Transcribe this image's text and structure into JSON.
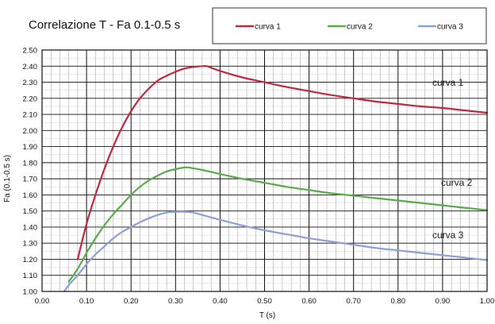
{
  "chart_data": {
    "type": "line",
    "title": "Correlazione T - Fa 0.1-0.5 s",
    "xlabel": "T (s)",
    "ylabel": "Fa (0.1-0.5 s)",
    "xlim": [
      0.0,
      1.0
    ],
    "ylim": [
      1.0,
      2.5
    ],
    "x_ticks": [
      "0.00",
      "0.10",
      "0.20",
      "0.30",
      "0.40",
      "0.50",
      "0.60",
      "0.70",
      "0.80",
      "0.90",
      "1.00"
    ],
    "y_ticks": [
      "1.00",
      "1.10",
      "1.20",
      "1.30",
      "1.40",
      "1.50",
      "1.60",
      "1.70",
      "1.80",
      "1.90",
      "2.00",
      "2.10",
      "2.20",
      "2.30",
      "2.40",
      "2.50"
    ],
    "grid": true,
    "legend_position": "top",
    "series": [
      {
        "name": "curva 1",
        "color": "#c0283d",
        "x": [
          0.08,
          0.1,
          0.12,
          0.14,
          0.16,
          0.18,
          0.2,
          0.22,
          0.24,
          0.26,
          0.28,
          0.3,
          0.32,
          0.34,
          0.36,
          0.37,
          0.38,
          0.4,
          0.45,
          0.5,
          0.55,
          0.6,
          0.65,
          0.7,
          0.75,
          0.8,
          0.85,
          0.9,
          0.95,
          1.0
        ],
        "y": [
          1.2,
          1.42,
          1.6,
          1.76,
          1.9,
          2.02,
          2.12,
          2.2,
          2.26,
          2.31,
          2.34,
          2.365,
          2.385,
          2.395,
          2.4,
          2.4,
          2.39,
          2.37,
          2.33,
          2.3,
          2.27,
          2.245,
          2.22,
          2.2,
          2.18,
          2.165,
          2.15,
          2.14,
          2.125,
          2.11
        ]
      },
      {
        "name": "curva 2",
        "color": "#5aab4a",
        "x": [
          0.06,
          0.08,
          0.1,
          0.12,
          0.14,
          0.16,
          0.18,
          0.2,
          0.22,
          0.24,
          0.26,
          0.28,
          0.3,
          0.32,
          0.33,
          0.34,
          0.36,
          0.4,
          0.45,
          0.5,
          0.55,
          0.6,
          0.65,
          0.7,
          0.75,
          0.8,
          0.85,
          0.9,
          0.95,
          1.0
        ],
        "y": [
          1.06,
          1.14,
          1.24,
          1.33,
          1.41,
          1.48,
          1.54,
          1.6,
          1.65,
          1.69,
          1.72,
          1.745,
          1.76,
          1.77,
          1.77,
          1.765,
          1.755,
          1.73,
          1.7,
          1.675,
          1.65,
          1.63,
          1.61,
          1.595,
          1.58,
          1.565,
          1.55,
          1.535,
          1.52,
          1.505
        ]
      },
      {
        "name": "curva 3",
        "color": "#8c9fd6",
        "x": [
          0.05,
          0.06,
          0.08,
          0.1,
          0.12,
          0.14,
          0.16,
          0.18,
          0.2,
          0.22,
          0.24,
          0.26,
          0.28,
          0.3,
          0.32,
          0.34,
          0.36,
          0.4,
          0.45,
          0.5,
          0.55,
          0.6,
          0.65,
          0.7,
          0.75,
          0.8,
          0.85,
          0.9,
          0.95,
          1.0
        ],
        "y": [
          1.0,
          1.04,
          1.1,
          1.17,
          1.23,
          1.28,
          1.33,
          1.37,
          1.4,
          1.43,
          1.455,
          1.475,
          1.49,
          1.495,
          1.495,
          1.49,
          1.475,
          1.445,
          1.41,
          1.38,
          1.355,
          1.33,
          1.31,
          1.29,
          1.27,
          1.255,
          1.24,
          1.225,
          1.21,
          1.195
        ]
      }
    ],
    "annotations": [
      "curva 1",
      "curva 2",
      "curva 3"
    ]
  }
}
